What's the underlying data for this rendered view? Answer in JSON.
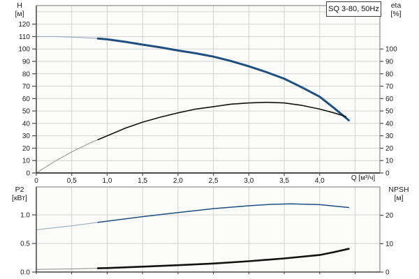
{
  "labels": {
    "title_box": "SQ 3-80, 50Hz",
    "left_top": {
      "name": "H",
      "unit": "[м]"
    },
    "right_top": {
      "name": "eta",
      "unit": "[%]"
    },
    "left_bottom": {
      "name": "P2",
      "unit": "[кВт]"
    },
    "right_bottom": {
      "name": "NPSH",
      "unit": "[м]"
    },
    "x_axis": "Q [м³/ч]"
  },
  "colors": {
    "curve_blue": "#1d4f80",
    "curve_blue_thin": "#8fa3b8",
    "curve_black": "#121212",
    "curve_black_thin": "#8c8c8c",
    "grid": "#d2d2d2",
    "border": "#8c8c8c",
    "axis_dark": "#4a4a4a",
    "text": "#1a1a1a",
    "plot_bg": "#fbfbf9"
  },
  "chart_data": [
    {
      "type": "line",
      "title": "SQ 3-80, 50Hz",
      "xlabel": "Q [м³/ч]",
      "ylabel_left": "H [м]",
      "ylabel_right": "eta [%]",
      "xlim": [
        0,
        4.85
      ],
      "scale_left": [
        0,
        135
      ],
      "scale_right": [
        0,
        135
      ],
      "grid": true,
      "x_tick_values": [
        0,
        0.5,
        1,
        1.5,
        2,
        2.5,
        3,
        3.5,
        4
      ],
      "x_tick_labels": [
        "0",
        "0,5",
        "1,0",
        "1,5",
        "2,0",
        "2,5",
        "3,0",
        "3,5",
        "4,0"
      ],
      "x_grid_values": [
        0.5,
        1,
        1.5,
        2,
        2.5,
        3,
        3.5,
        4,
        4.5
      ],
      "left_tick_values": [
        0,
        10,
        20,
        30,
        40,
        50,
        60,
        70,
        80,
        90,
        100,
        110,
        120
      ],
      "left_tick_labels": [
        "0",
        "10",
        "20",
        "30",
        "40",
        "50",
        "60",
        "70",
        "80",
        "90",
        "100",
        "110",
        "120"
      ],
      "left_grid_values": [
        10,
        20,
        30,
        40,
        50,
        60,
        70,
        80,
        90,
        100,
        110,
        120,
        130
      ],
      "right_tick_values": [
        0,
        10,
        20,
        30,
        40,
        50,
        60,
        70,
        80,
        90,
        100
      ],
      "right_tick_labels": [
        "0",
        "10",
        "20",
        "30",
        "40",
        "50",
        "60",
        "70",
        "80",
        "90",
        "100"
      ],
      "series": [
        {
          "name": "H",
          "axis": "left",
          "color_key": "curve_blue",
          "thin_color_key": "curve_blue_thin",
          "width": 3,
          "thin_width": 1,
          "thin_until": 0.87,
          "points": [
            [
              0,
              110
            ],
            [
              0.25,
              110
            ],
            [
              0.5,
              109.6
            ],
            [
              0.75,
              108.9
            ],
            [
              1.0,
              107.8
            ],
            [
              1.25,
              105.8
            ],
            [
              1.5,
              103.5
            ],
            [
              1.75,
              101.3
            ],
            [
              2.0,
              98.8
            ],
            [
              2.25,
              96.5
            ],
            [
              2.5,
              93.8
            ],
            [
              2.75,
              90.2
            ],
            [
              3.0,
              86
            ],
            [
              3.25,
              81.3
            ],
            [
              3.5,
              76
            ],
            [
              3.75,
              69
            ],
            [
              4.0,
              61.5
            ],
            [
              4.2,
              52.5
            ],
            [
              4.41,
              42.5
            ]
          ]
        },
        {
          "name": "eta",
          "axis": "right",
          "color_key": "curve_black",
          "thin_color_key": "curve_black_thin",
          "width": 1.6,
          "thin_width": 1,
          "thin_until": 0.87,
          "points": [
            [
              0,
              0
            ],
            [
              0.25,
              9
            ],
            [
              0.5,
              17
            ],
            [
              0.75,
              24
            ],
            [
              1.0,
              30
            ],
            [
              1.25,
              36
            ],
            [
              1.5,
              41
            ],
            [
              1.75,
              45
            ],
            [
              2.0,
              48.5
            ],
            [
              2.25,
              51.5
            ],
            [
              2.5,
              53.5
            ],
            [
              2.75,
              55.5
            ],
            [
              3.0,
              56.5
            ],
            [
              3.25,
              57
            ],
            [
              3.5,
              56.5
            ],
            [
              3.75,
              54.5
            ],
            [
              4.0,
              51.5
            ],
            [
              4.2,
              48.5
            ],
            [
              4.37,
              45.5
            ]
          ]
        }
      ]
    },
    {
      "type": "line",
      "title": "",
      "xlabel": "",
      "ylabel_left": "P2 [кВт]",
      "ylabel_right": "NPSH [м]",
      "xlim": [
        0,
        4.85
      ],
      "scale_left": [
        0,
        1.49
      ],
      "scale_right": [
        0,
        30
      ],
      "grid": true,
      "x_tick_values": [
        0,
        0.5,
        1,
        1.5,
        2,
        2.5,
        3,
        3.5,
        4,
        4.5
      ],
      "x_tick_labels": [],
      "x_grid_values": [
        0.5,
        1,
        1.5,
        2,
        2.5,
        3,
        3.5,
        4,
        4.5
      ],
      "left_tick_values": [
        0,
        0.5,
        1.0
      ],
      "left_tick_labels": [
        "0.0",
        "0.5",
        "1.0"
      ],
      "left_grid_values": [
        0.5,
        1.0
      ],
      "right_tick_values": [
        0,
        10,
        20
      ],
      "right_tick_labels": [
        "0",
        "10",
        "20"
      ],
      "series": [
        {
          "name": "P2",
          "axis": "left",
          "color_key": "curve_blue",
          "thin_color_key": "curve_blue_thin",
          "width": 1.5,
          "thin_width": 1,
          "thin_until": 0.87,
          "points": [
            [
              0,
              0.74
            ],
            [
              0.5,
              0.81
            ],
            [
              1.0,
              0.89
            ],
            [
              1.5,
              0.97
            ],
            [
              2.0,
              1.04
            ],
            [
              2.5,
              1.11
            ],
            [
              3.0,
              1.16
            ],
            [
              3.3,
              1.185
            ],
            [
              3.6,
              1.195
            ],
            [
              4.0,
              1.18
            ],
            [
              4.41,
              1.13
            ]
          ]
        },
        {
          "name": "NPSH",
          "axis": "right",
          "color_key": "curve_black",
          "thin_color_key": "curve_black_thin",
          "width": 2.6,
          "thin_width": 1,
          "thin_until": 0.87,
          "points": [
            [
              0,
              0.9
            ],
            [
              0.5,
              1.1
            ],
            [
              1.0,
              1.4
            ],
            [
              1.5,
              1.9
            ],
            [
              2.0,
              2.4
            ],
            [
              2.5,
              3.0
            ],
            [
              3.0,
              3.8
            ],
            [
              3.5,
              4.8
            ],
            [
              4.0,
              6.0
            ],
            [
              4.2,
              7.0
            ],
            [
              4.41,
              8.2
            ]
          ]
        }
      ]
    }
  ]
}
